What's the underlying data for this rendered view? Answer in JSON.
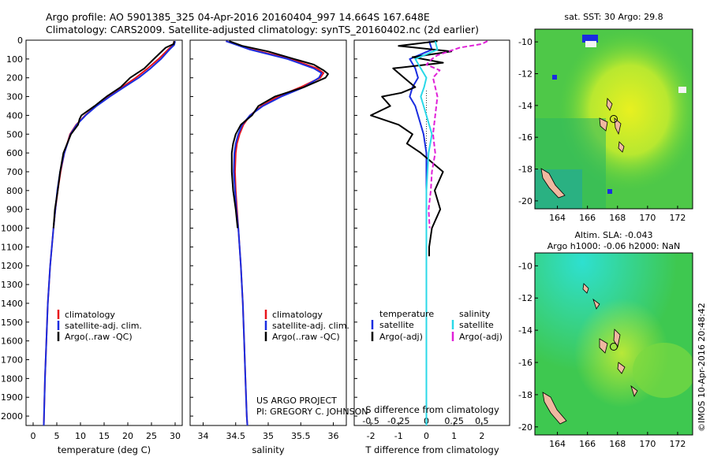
{
  "header": {
    "line1": "Argo profile: AO 5901385_325 04-Apr-2016 20160404_997 14.664S 167.648E",
    "line2": "Climatology: CARS2009. Satellite-adjusted climatology: synTS_20160402.nc (2d earlier)"
  },
  "colors": {
    "clim": "#e8141b",
    "sat": "#1a2de0",
    "argo": "#000000",
    "sat_sal": "#29d8e8",
    "argo_sal": "#e020d8"
  },
  "depth_axis": {
    "ticks": [
      "0",
      "100",
      "200",
      "300",
      "400",
      "500",
      "600",
      "700",
      "800",
      "900",
      "1000",
      "1100",
      "1200",
      "1300",
      "1400",
      "1500",
      "1600",
      "1700",
      "1800",
      "1900",
      "2000"
    ]
  },
  "project": {
    "line1": "US ARGO PROJECT",
    "line2": "PI: GREGORY C. JOHNSON"
  },
  "timestamp": "©IMOS 10-Apr-2016 20:48:42",
  "map_top": {
    "title": "sat. SST: 30 Argo: 29.8",
    "xticks": [
      "164",
      "166",
      "168",
      "170",
      "172"
    ],
    "yticks": [
      "-10",
      "-12",
      "-14",
      "-16",
      "-18",
      "-20"
    ]
  },
  "map_bottom": {
    "title1": "Altim. SLA: -0.043",
    "title2": "Argo h1000: -0.06 h2000: NaN",
    "xticks": [
      "164",
      "166",
      "168",
      "170",
      "172"
    ],
    "yticks": [
      "-10",
      "-12",
      "-14",
      "-16",
      "-18",
      "-20"
    ]
  },
  "chart_data": [
    {
      "type": "line",
      "panel": "temperature",
      "xlabel": "temperature (deg C)",
      "xlim": [
        -1.5,
        31.5
      ],
      "ylim": [
        0,
        2050
      ],
      "xticks": [
        "0",
        "5",
        "10",
        "15",
        "20",
        "25",
        "30"
      ],
      "legend": [
        "climatology",
        "satellite-adj. clim.",
        "Argo(..raw -QC)"
      ],
      "series": [
        {
          "name": "climatology",
          "depth": [
            5,
            25,
            50,
            100,
            150,
            200,
            250,
            300,
            350,
            400,
            450,
            500,
            600,
            700,
            800,
            900,
            1000,
            1200,
            1400,
            1600,
            1800,
            2000,
            2050
          ],
          "values": [
            29.8,
            29.6,
            28.5,
            26.5,
            24.2,
            21.7,
            18.8,
            16.0,
            13.3,
            11.0,
            9.1,
            7.8,
            6.6,
            5.8,
            5.2,
            4.7,
            4.3,
            3.6,
            3.1,
            2.8,
            2.5,
            2.3,
            2.25
          ]
        },
        {
          "name": "satellite-adj. clim.",
          "depth": [
            5,
            25,
            50,
            100,
            150,
            200,
            250,
            300,
            350,
            400,
            450,
            500,
            600,
            700,
            800,
            900,
            1000,
            1200,
            1400,
            1600,
            1800,
            2000,
            2050
          ],
          "values": [
            30.0,
            29.8,
            28.8,
            27.0,
            24.8,
            22.3,
            19.2,
            16.2,
            13.4,
            11.1,
            9.2,
            7.9,
            6.6,
            5.7,
            5.1,
            4.7,
            4.3,
            3.6,
            3.1,
            2.8,
            2.5,
            2.3,
            2.25
          ]
        },
        {
          "name": "Argo(..raw -QC)",
          "depth": [
            5,
            20,
            40,
            100,
            150,
            200,
            250,
            300,
            350,
            400,
            420,
            450,
            500,
            600,
            700,
            800,
            900,
            1000
          ],
          "values": [
            29.8,
            29.7,
            28.0,
            25.5,
            23.5,
            20.5,
            18.5,
            15.5,
            13.0,
            10.2,
            9.8,
            9.5,
            8.0,
            6.4,
            5.7,
            5.2,
            4.6,
            4.3
          ]
        }
      ]
    },
    {
      "type": "line",
      "panel": "salinity",
      "xlabel": "salinity",
      "xlim": [
        33.8,
        36.2
      ],
      "ylim": [
        0,
        2050
      ],
      "xticks": [
        "34",
        "34.5",
        "35",
        "35.5",
        "36"
      ],
      "legend": [
        "climatology",
        "satellite-adj. clim.",
        "Argo(..raw -QC)"
      ],
      "series": [
        {
          "name": "climatology",
          "depth": [
            5,
            50,
            100,
            150,
            175,
            200,
            250,
            300,
            350,
            400,
            450,
            500,
            550,
            600,
            700,
            800,
            900,
            1000,
            1200,
            1400,
            1600,
            1800,
            2000,
            2050
          ],
          "values": [
            34.35,
            34.75,
            35.35,
            35.75,
            35.85,
            35.8,
            35.5,
            35.15,
            34.9,
            34.72,
            34.62,
            34.56,
            34.52,
            34.5,
            34.49,
            34.5,
            34.52,
            34.54,
            34.58,
            34.61,
            34.63,
            34.65,
            34.67,
            34.68
          ]
        },
        {
          "name": "satellite-adj. clim.",
          "depth": [
            5,
            50,
            100,
            150,
            175,
            200,
            250,
            300,
            350,
            400,
            450,
            500,
            550,
            600,
            700,
            800,
            900,
            1000,
            1200,
            1400,
            1600,
            1800,
            2000,
            2050
          ],
          "values": [
            34.35,
            34.72,
            35.3,
            35.7,
            35.82,
            35.78,
            35.55,
            35.2,
            34.92,
            34.72,
            34.6,
            34.54,
            34.5,
            34.48,
            34.47,
            34.49,
            34.51,
            34.54,
            34.58,
            34.61,
            34.63,
            34.65,
            34.67,
            34.68
          ]
        },
        {
          "name": "Argo(..raw -QC)",
          "depth": [
            5,
            30,
            60,
            100,
            130,
            160,
            180,
            200,
            250,
            300,
            350,
            400,
            450,
            500,
            550,
            600,
            700,
            800,
            900,
            1000
          ],
          "values": [
            34.4,
            34.6,
            35.0,
            35.4,
            35.7,
            35.85,
            35.92,
            35.88,
            35.55,
            35.1,
            34.85,
            34.75,
            34.58,
            34.5,
            34.46,
            34.44,
            34.44,
            34.46,
            34.5,
            34.53
          ]
        }
      ]
    },
    {
      "type": "line",
      "panel": "difference",
      "xlabel_top": "S difference from climatology",
      "xlabel": "T difference from climatology",
      "xlim_T": [
        -2.6,
        3.0
      ],
      "ylim": [
        0,
        2050
      ],
      "xticks_T": [
        "-2",
        "-1",
        "0",
        "1",
        "2"
      ],
      "xticks_S": [
        "-0.5",
        "-0.25",
        "0",
        "0.25",
        "0.5"
      ],
      "legend": {
        "temperature_header": "temperature",
        "salinity_header": "salinity",
        "items": [
          "satellite",
          "Argo(-adj)",
          "satellite",
          "Argo(-adj)"
        ]
      },
      "series": [
        {
          "name": "temperature satellite",
          "depth": [
            5,
            50,
            100,
            150,
            200,
            250,
            300,
            350,
            400,
            500,
            600,
            700,
            800,
            900,
            1000,
            1500,
            2050
          ],
          "values": [
            0.1,
            0.2,
            -0.6,
            -0.4,
            -0.3,
            -0.5,
            -0.6,
            -0.4,
            -0.3,
            -0.1,
            0.0,
            0.0,
            0.0,
            0.0,
            0.0,
            0.0,
            0.0
          ]
        },
        {
          "name": "temperature Argo(-adj)",
          "depth": [
            5,
            30,
            60,
            90,
            120,
            150,
            200,
            250,
            280,
            300,
            350,
            400,
            420,
            450,
            500,
            550,
            600,
            700,
            800,
            900,
            1000,
            1100,
            1150
          ],
          "values": [
            0.4,
            -1.0,
            0.9,
            -0.5,
            0.6,
            -1.2,
            -0.8,
            -0.4,
            -0.9,
            -1.6,
            -1.3,
            -2.0,
            -1.6,
            -1.0,
            -0.5,
            -0.7,
            -0.2,
            0.6,
            0.3,
            0.5,
            0.2,
            0.1,
            0.1
          ]
        },
        {
          "name": "salinity satellite",
          "depth": [
            5,
            50,
            100,
            150,
            200,
            250,
            300,
            400,
            500,
            600,
            800,
            1000,
            1500,
            2050
          ],
          "values": [
            0.08,
            0.1,
            -0.1,
            -0.05,
            0.0,
            -0.02,
            -0.05,
            0.0,
            0.05,
            0.02,
            0.0,
            0.0,
            0.0,
            0.0
          ]
        },
        {
          "name": "salinity Argo(-adj)",
          "depth": [
            5,
            20,
            40,
            60,
            80,
            100,
            130,
            160,
            200,
            250,
            300,
            400,
            500,
            600,
            700,
            800,
            900,
            1000
          ],
          "values": [
            0.55,
            0.5,
            0.3,
            0.2,
            0.1,
            0.05,
            0.0,
            0.12,
            0.06,
            0.08,
            0.1,
            0.08,
            0.06,
            0.08,
            0.05,
            0.04,
            0.02,
            0.03
          ]
        }
      ]
    }
  ]
}
